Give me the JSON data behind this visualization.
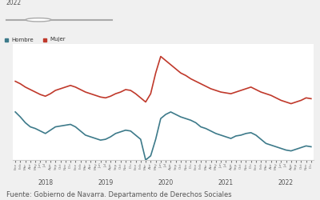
{
  "title": "",
  "legend_labels": [
    "Hombre",
    "Mujer"
  ],
  "line_colors": [
    "#3d7a8a",
    "#c0392b"
  ],
  "background_color": "#f0f0f0",
  "plot_background": "#ffffff",
  "source_text": "Fuente: Gobierno de Navarra. Departamento de Derechos Sociales",
  "source_fontsize": 6,
  "year_ticks": [
    "2018",
    "2019",
    "2020",
    "2021",
    "2022"
  ],
  "months": [
    "Ene",
    "Feb",
    "Mar",
    "Abr",
    "May",
    "Jun",
    "Jul",
    "Ago",
    "Sep",
    "Oct",
    "Nov",
    "Dic"
  ],
  "hombre_values": [
    13800,
    13200,
    12500,
    12000,
    11800,
    11500,
    11200,
    11600,
    12000,
    12100,
    12200,
    12300,
    12000,
    11500,
    11000,
    10800,
    10600,
    10400,
    10500,
    10800,
    11200,
    11400,
    11600,
    11500,
    11000,
    10500,
    8000,
    8500,
    10500,
    13000,
    13500,
    13800,
    13500,
    13200,
    13000,
    12800,
    12500,
    12000,
    11800,
    11500,
    11200,
    11000,
    10800,
    10600,
    10900,
    11000,
    11200,
    11300,
    11000,
    10500,
    10000,
    9800,
    9600,
    9400,
    9200,
    9100,
    9300,
    9500,
    9700,
    9600
  ],
  "mujer_values": [
    17500,
    17200,
    16800,
    16500,
    16200,
    15900,
    15700,
    16000,
    16400,
    16600,
    16800,
    17000,
    16800,
    16500,
    16200,
    16000,
    15800,
    15600,
    15500,
    15700,
    16000,
    16200,
    16500,
    16400,
    16000,
    15500,
    15000,
    16000,
    18500,
    20500,
    20000,
    19500,
    19000,
    18500,
    18200,
    17800,
    17500,
    17200,
    16900,
    16600,
    16400,
    16200,
    16100,
    16000,
    16200,
    16400,
    16600,
    16800,
    16500,
    16200,
    16000,
    15800,
    15500,
    15200,
    15000,
    14800,
    15000,
    15200,
    15500,
    15400
  ],
  "ylim": [
    8000,
    22000
  ],
  "line_width": 1.2
}
